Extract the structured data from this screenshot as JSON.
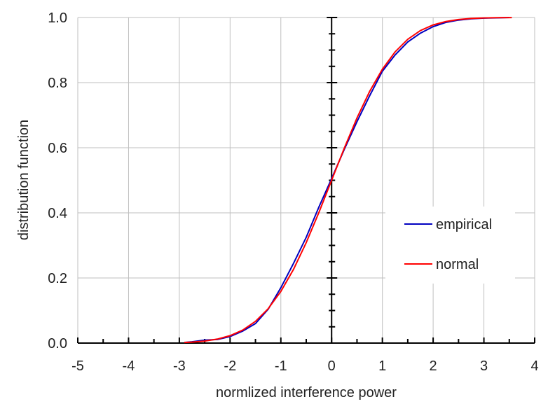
{
  "chart_data": {
    "type": "line",
    "title": "",
    "xlabel": "normlized interference power",
    "ylabel": "distribution function",
    "xlim": [
      -5,
      4
    ],
    "ylim": [
      0,
      1
    ],
    "xticks": [
      -5,
      -4,
      -3,
      -2,
      -1,
      0,
      1,
      2,
      3,
      4
    ],
    "yticks": [
      "0.0",
      "0.2",
      "0.4",
      "0.6",
      "0.8",
      "1.0"
    ],
    "grid": true,
    "legend_position": "right",
    "series": [
      {
        "name": "empirical",
        "color": "#0000c0",
        "x": [
          -2.9,
          -2.75,
          -2.5,
          -2.25,
          -2,
          -1.75,
          -1.5,
          -1.25,
          -1,
          -0.75,
          -0.5,
          -0.25,
          0,
          0.25,
          0.5,
          0.75,
          1,
          1.25,
          1.5,
          1.75,
          2,
          2.25,
          2.5,
          2.75,
          3,
          3.25,
          3.5
        ],
        "y": [
          0.002,
          0.004,
          0.009,
          0.011,
          0.02,
          0.037,
          0.06,
          0.104,
          0.17,
          0.245,
          0.325,
          0.418,
          0.505,
          0.595,
          0.68,
          0.76,
          0.835,
          0.885,
          0.925,
          0.952,
          0.972,
          0.985,
          0.992,
          0.996,
          0.998,
          0.999,
          1.0
        ]
      },
      {
        "name": "normal",
        "color": "#ff0000",
        "x": [
          -2.9,
          -2.75,
          -2.5,
          -2.25,
          -2,
          -1.75,
          -1.5,
          -1.25,
          -1,
          -0.75,
          -0.5,
          -0.25,
          0,
          0.25,
          0.5,
          0.75,
          1,
          1.25,
          1.5,
          1.75,
          2,
          2.25,
          2.5,
          2.75,
          3,
          3.25,
          3.55
        ],
        "y": [
          0.0019,
          0.003,
          0.0062,
          0.0122,
          0.0228,
          0.0401,
          0.0668,
          0.1056,
          0.1587,
          0.2266,
          0.3085,
          0.4013,
          0.5,
          0.5987,
          0.6915,
          0.7734,
          0.8413,
          0.8944,
          0.9332,
          0.9599,
          0.9772,
          0.9878,
          0.9938,
          0.997,
          0.9987,
          0.9994,
          0.9998
        ]
      }
    ]
  }
}
